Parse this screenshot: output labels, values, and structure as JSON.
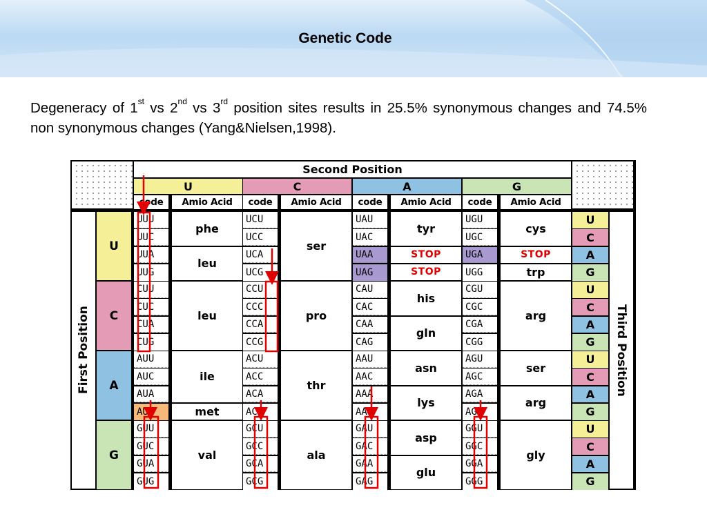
{
  "slide": {
    "title": "Genetic Code",
    "paragraph": {
      "p1": "Degeneracy of 1",
      "s1": "st",
      "p2": " vs 2",
      "s2": "nd",
      "p3": " vs 3",
      "s3": "rd",
      "p4": " position sites results in 25.5% synonymous changes and 74.5% non synonymous changes (Yang&Nielsen,1998)."
    }
  },
  "table": {
    "second_position_label": "Second Position",
    "first_position_label": "First Position",
    "third_position_label": "Third Position",
    "bases": [
      "U",
      "C",
      "A",
      "G"
    ],
    "base_colors": {
      "U": "#f5f097",
      "C": "#e49cb6",
      "A": "#8fc1e3",
      "G": "#c9e4b5"
    },
    "highlight_colors": {
      "stop_codon": "#a89ad0",
      "start_codon": "#f6b979",
      "stop_text": "#e00000",
      "arrow": "#e00000"
    },
    "code_header": "code",
    "amino_header": "Amio Acid",
    "codons": [
      [
        "UUU",
        "UCU",
        "UAU",
        "UGU"
      ],
      [
        "UUC",
        "UCC",
        "UAC",
        "UGC"
      ],
      [
        "UUA",
        "UCA",
        "UAA",
        "UGA"
      ],
      [
        "UUG",
        "UCG",
        "UAG",
        "UGG"
      ],
      [
        "CUU",
        "CCU",
        "CAU",
        "CGU"
      ],
      [
        "CUC",
        "CCC",
        "CAC",
        "CGC"
      ],
      [
        "CUA",
        "CCA",
        "CAA",
        "CGA"
      ],
      [
        "CUG",
        "CCG",
        "CAG",
        "CGG"
      ],
      [
        "AUU",
        "ACU",
        "AAU",
        "AGU"
      ],
      [
        "AUC",
        "ACC",
        "AAC",
        "AGC"
      ],
      [
        "AUA",
        "ACA",
        "AAA",
        "AGA"
      ],
      [
        "AUG",
        "ACG",
        "AAG",
        "AGG"
      ],
      [
        "GUU",
        "GCU",
        "GAU",
        "GGU"
      ],
      [
        "GUC",
        "GCC",
        "GAC",
        "GGC"
      ],
      [
        "GUA",
        "GCA",
        "GAA",
        "GGA"
      ],
      [
        "GUG",
        "GCG",
        "GAG",
        "GGG"
      ]
    ],
    "amino_acids": [
      [
        {
          "name": "phe",
          "start": 0,
          "span": 2
        },
        {
          "name": "leu",
          "start": 2,
          "span": 2
        },
        {
          "name": "leu",
          "start": 4,
          "span": 4
        },
        {
          "name": "ile",
          "start": 8,
          "span": 3
        },
        {
          "name": "met",
          "start": 11,
          "span": 1
        },
        {
          "name": "val",
          "start": 12,
          "span": 4
        }
      ],
      [
        {
          "name": "ser",
          "start": 0,
          "span": 4
        },
        {
          "name": "pro",
          "start": 4,
          "span": 4
        },
        {
          "name": "thr",
          "start": 8,
          "span": 4
        },
        {
          "name": "ala",
          "start": 12,
          "span": 4
        }
      ],
      [
        {
          "name": "tyr",
          "start": 0,
          "span": 2
        },
        {
          "name": "STOP",
          "start": 2,
          "span": 1
        },
        {
          "name": "STOP",
          "start": 3,
          "span": 1
        },
        {
          "name": "his",
          "start": 4,
          "span": 2
        },
        {
          "name": "gln",
          "start": 6,
          "span": 2
        },
        {
          "name": "asn",
          "start": 8,
          "span": 2
        },
        {
          "name": "lys",
          "start": 10,
          "span": 2
        },
        {
          "name": "asp",
          "start": 12,
          "span": 2
        },
        {
          "name": "glu",
          "start": 14,
          "span": 2
        }
      ],
      [
        {
          "name": "cys",
          "start": 0,
          "span": 2
        },
        {
          "name": "STOP",
          "start": 2,
          "span": 1
        },
        {
          "name": "trp",
          "start": 3,
          "span": 1
        },
        {
          "name": "arg",
          "start": 4,
          "span": 4
        },
        {
          "name": "ser",
          "start": 8,
          "span": 2
        },
        {
          "name": "arg",
          "start": 10,
          "span": 2
        },
        {
          "name": "gly",
          "start": 12,
          "span": 4
        }
      ]
    ],
    "stop_codons": [
      "UAA",
      "UAG",
      "UGA"
    ],
    "start_codon": "AUG"
  }
}
